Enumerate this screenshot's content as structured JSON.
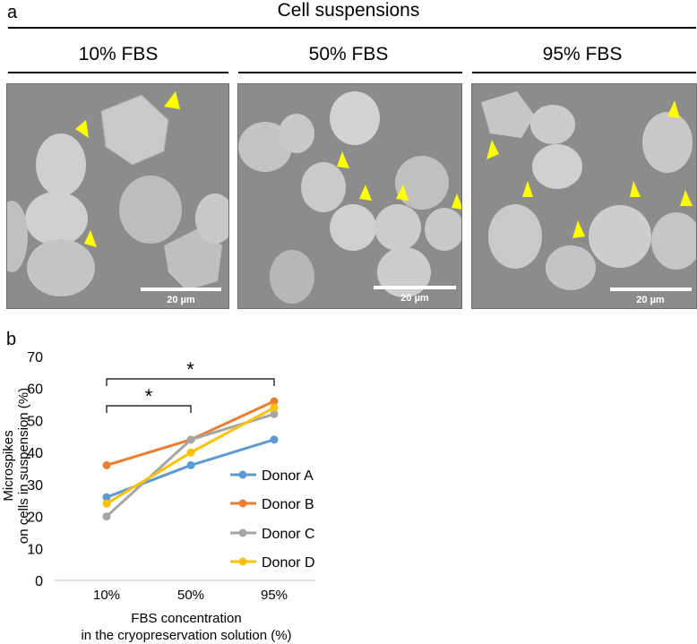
{
  "panel_a": {
    "letter": "a",
    "title": "Cell suspensions",
    "conditions": [
      "10% FBS",
      "50% FBS",
      "95% FBS"
    ],
    "scale_bar_label": "20 µm"
  },
  "panel_b": {
    "letter": "b"
  },
  "colors": {
    "donor_a": "#5b9bd5",
    "donor_b": "#ed7d31",
    "donor_c": "#a5a5a5",
    "donor_d": "#ffc000",
    "arrowhead": "#ffff00"
  },
  "chart_data": {
    "type": "line",
    "categories": [
      "10%",
      "50%",
      "95%"
    ],
    "series": [
      {
        "name": "Donor A",
        "values": [
          26,
          36,
          44
        ]
      },
      {
        "name": "Donor B",
        "values": [
          36,
          44,
          56
        ]
      },
      {
        "name": "Donor C",
        "values": [
          20,
          44,
          52
        ]
      },
      {
        "name": "Donor D",
        "values": [
          24,
          40,
          54
        ]
      }
    ],
    "ylabel_line1": "Microspikes",
    "ylabel_line2": "on cells in suspension (%)",
    "xlabel_line1": "FBS concentration",
    "xlabel_line2": "in the cryopreservation solution (%)",
    "ylim": [
      0,
      70
    ],
    "yticks": [
      0,
      10,
      20,
      30,
      40,
      50,
      60,
      70
    ],
    "grid": false,
    "legend_position": "right",
    "significance": [
      {
        "from": "10%",
        "to": "50%",
        "label": "*"
      },
      {
        "from": "10%",
        "to": "95%",
        "label": "*"
      }
    ]
  }
}
